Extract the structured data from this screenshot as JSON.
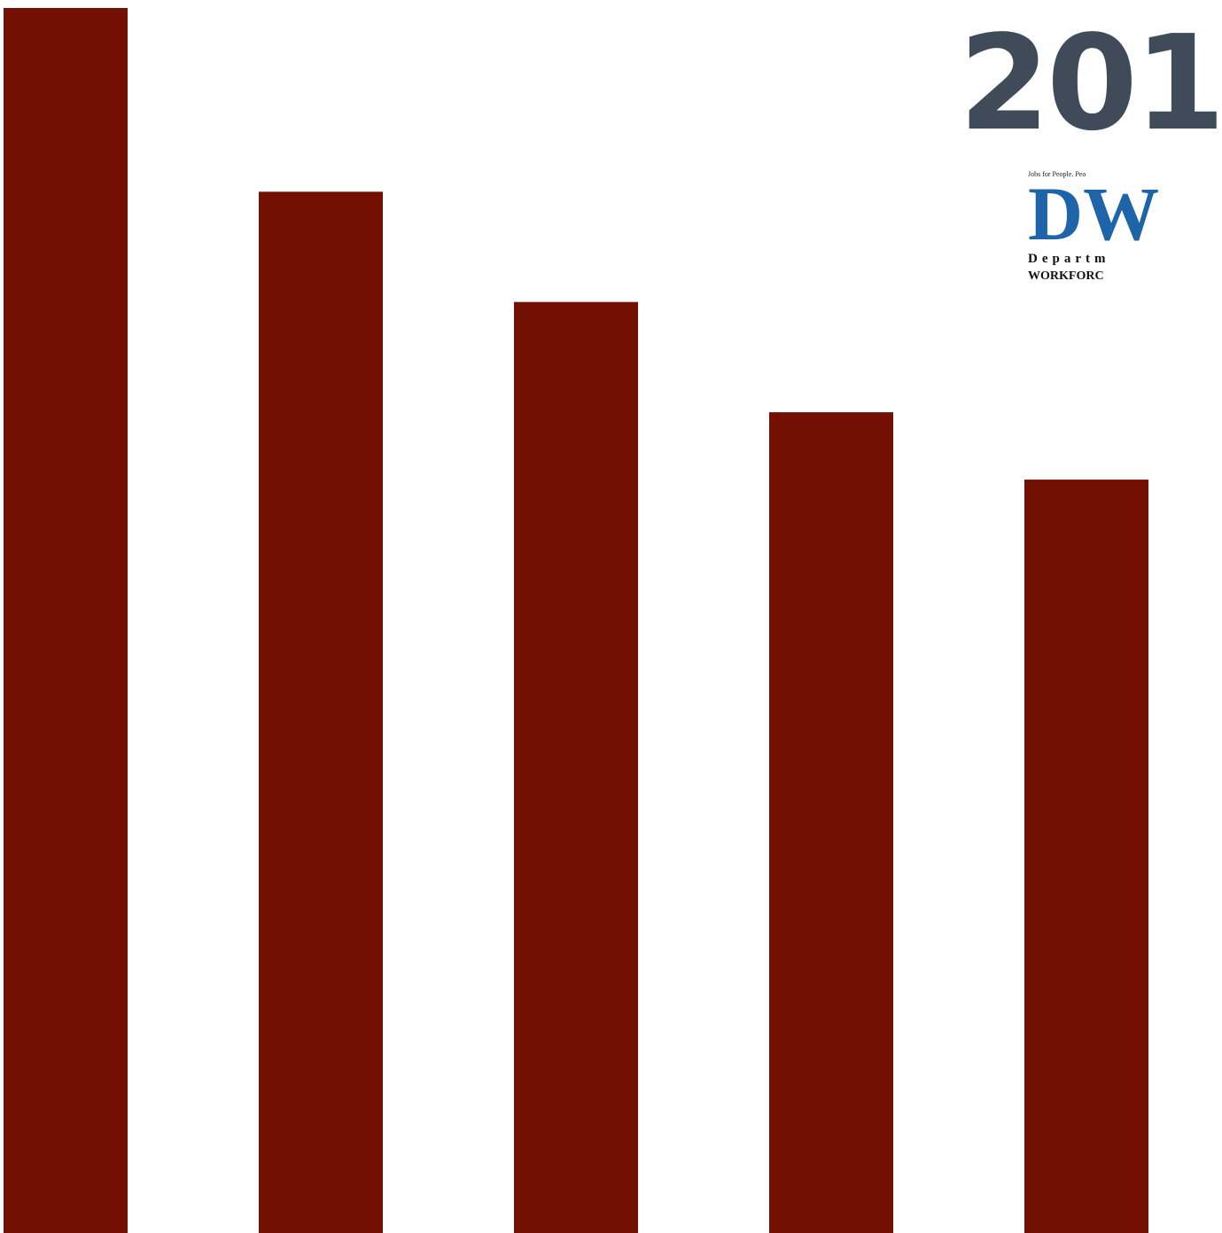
{
  "colors": {
    "bar": "#731003",
    "title": "#3f4b58",
    "logo_blue": "#1f63a8"
  },
  "header": {
    "year_title": "201"
  },
  "logo": {
    "tagline": "Jobs for People. Peo",
    "letters": "DW",
    "line1": "Departm",
    "line2": "WORKFORC"
  },
  "chart_data": {
    "type": "bar",
    "categories": [
      "",
      "",
      "",
      "",
      ""
    ],
    "values": [
      100,
      85,
      76,
      67,
      61.5
    ],
    "ylim": [
      0,
      100
    ],
    "grid": false,
    "title": "",
    "xlabel": "",
    "ylabel": ""
  }
}
